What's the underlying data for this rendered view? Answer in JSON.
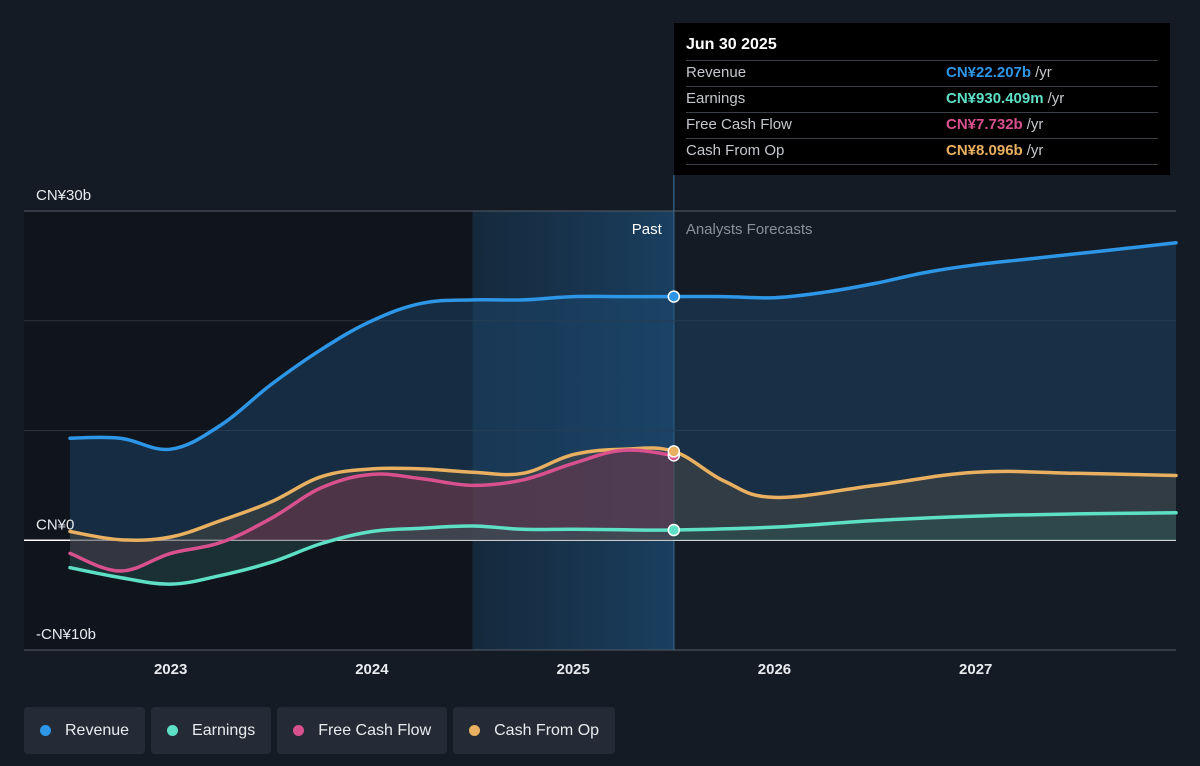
{
  "tooltip": {
    "date": "Jun 30 2025",
    "rows": [
      {
        "label": "Revenue",
        "value": "CN¥22.207b",
        "unit": "/yr",
        "color": "#2d96e6"
      },
      {
        "label": "Earnings",
        "value": "CN¥930.409m",
        "unit": "/yr",
        "color": "#5de0c6"
      },
      {
        "label": "Free Cash Flow",
        "value": "CN¥7.732b",
        "unit": "/yr",
        "color": "#d9508e"
      },
      {
        "label": "Cash From Op",
        "value": "CN¥8.096b",
        "unit": "/yr",
        "color": "#e8b060"
      }
    ]
  },
  "legend": [
    {
      "label": "Revenue",
      "color": "#2d96e6"
    },
    {
      "label": "Earnings",
      "color": "#5de0c6"
    },
    {
      "label": "Free Cash Flow",
      "color": "#d9508e"
    },
    {
      "label": "Cash From Op",
      "color": "#e8b060"
    }
  ],
  "chart_data": {
    "type": "line",
    "y_tick_labels": [
      "CN¥30b",
      "CN¥0",
      "-CN¥10b"
    ],
    "ylim": [
      -10,
      30
    ],
    "xlim": [
      2022.5,
      2027.995
    ],
    "x_tick_labels": [
      "2023",
      "2024",
      "2025",
      "2026",
      "2027"
    ],
    "x_ticks": [
      2023,
      2024,
      2025,
      2026,
      2027
    ],
    "past_label": "Past",
    "forecast_label": "Analysts Forecasts",
    "forecast_start": 2025.5,
    "highlight_start": 2024.5,
    "grid": true,
    "series": [
      {
        "name": "Revenue",
        "color": "#2d96e6",
        "x": [
          2022.5,
          2022.75,
          2023.0,
          2023.25,
          2023.5,
          2023.75,
          2024.0,
          2024.25,
          2024.5,
          2024.75,
          2025.0,
          2025.25,
          2025.5,
          2025.75,
          2026.0,
          2026.25,
          2026.5,
          2026.75,
          2027.0,
          2027.25,
          2027.5,
          2027.75,
          2027.995
        ],
        "y": [
          9.3,
          9.3,
          8.3,
          10.5,
          14.2,
          17.4,
          20.0,
          21.6,
          21.9,
          21.9,
          22.2,
          22.2,
          22.2,
          22.2,
          22.1,
          22.6,
          23.4,
          24.4,
          25.1,
          25.6,
          26.1,
          26.6,
          27.1
        ]
      },
      {
        "name": "Earnings",
        "color": "#5de0c6",
        "x": [
          2022.5,
          2022.75,
          2023.0,
          2023.25,
          2023.5,
          2023.75,
          2024.0,
          2024.25,
          2024.5,
          2024.75,
          2025.0,
          2025.25,
          2025.5,
          2026.0,
          2026.5,
          2027.0,
          2027.5,
          2027.995
        ],
        "y": [
          -2.5,
          -3.4,
          -4.0,
          -3.2,
          -2.0,
          -0.3,
          0.8,
          1.1,
          1.3,
          1.0,
          1.0,
          0.95,
          0.93,
          1.2,
          1.8,
          2.2,
          2.4,
          2.5
        ]
      },
      {
        "name": "Free Cash Flow",
        "color": "#d9508e",
        "x": [
          2022.5,
          2022.75,
          2023.0,
          2023.25,
          2023.5,
          2023.75,
          2024.0,
          2024.25,
          2024.5,
          2024.75,
          2025.0,
          2025.25,
          2025.5
        ],
        "y": [
          -1.2,
          -2.8,
          -1.2,
          -0.2,
          2.0,
          4.8,
          6.0,
          5.6,
          5.0,
          5.5,
          7.0,
          8.2,
          7.732
        ]
      },
      {
        "name": "Cash From Op",
        "color": "#e8b060",
        "x": [
          2022.5,
          2022.75,
          2023.0,
          2023.25,
          2023.5,
          2023.75,
          2024.0,
          2024.25,
          2024.5,
          2024.75,
          2025.0,
          2025.25,
          2025.5,
          2025.75,
          2026.0,
          2026.5,
          2027.0,
          2027.5,
          2027.995
        ],
        "y": [
          0.8,
          0.05,
          0.3,
          1.8,
          3.5,
          5.8,
          6.5,
          6.5,
          6.2,
          6.1,
          7.8,
          8.3,
          8.096,
          5.4,
          3.9,
          5.0,
          6.2,
          6.1,
          5.9
        ]
      }
    ]
  }
}
